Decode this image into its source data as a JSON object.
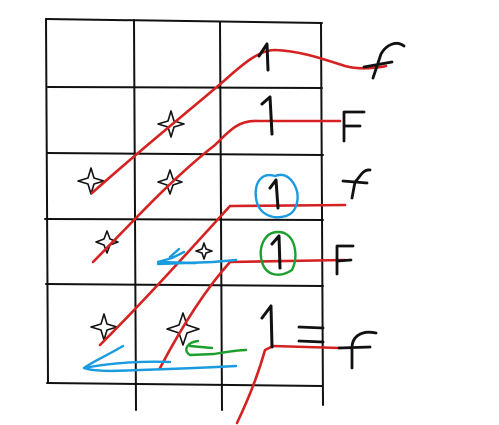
{
  "colors": {
    "ink": "#111111",
    "red": "#d42222",
    "blue": "#1a9be0",
    "green": "#1e9e2c",
    "background": "#ffffff"
  },
  "grid": {
    "rows": 5,
    "columns": 3
  },
  "icons": {
    "star": "four-pointed-star-icon"
  },
  "row_labels": [
    {
      "value": "1",
      "output": "f",
      "marked": "none"
    },
    {
      "value": "1",
      "output": "F",
      "marked": "none"
    },
    {
      "value": "1",
      "output": "f",
      "marked": "blue-circle"
    },
    {
      "value": "1",
      "output": "F",
      "marked": "green-circle"
    },
    {
      "value": "1",
      "output": "f",
      "marked": "none",
      "equals": "="
    }
  ]
}
